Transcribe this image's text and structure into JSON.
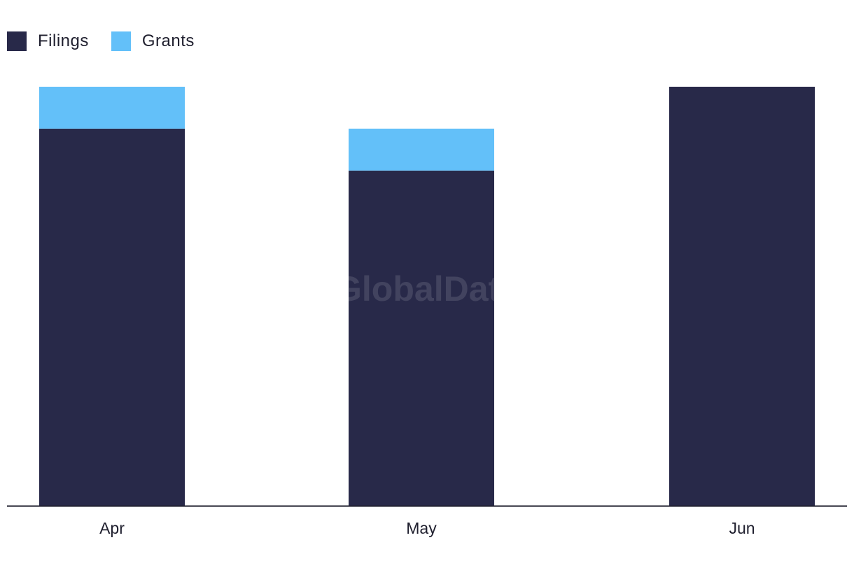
{
  "watermark": "GlobalData",
  "colors": {
    "filings": "#282949",
    "grants": "#63c0f9",
    "axis": "#1f1f2e"
  },
  "legend": [
    {
      "label": "Filings",
      "color": "#282949"
    },
    {
      "label": "Grants",
      "color": "#63c0f9"
    }
  ],
  "chart_data": {
    "type": "bar",
    "stacked": true,
    "categories": [
      "Apr",
      "May",
      "Jun"
    ],
    "series": [
      {
        "name": "Filings",
        "values": [
          9,
          8,
          10
        ]
      },
      {
        "name": "Grants",
        "values": [
          1,
          1,
          0
        ]
      }
    ],
    "title": "",
    "xlabel": "",
    "ylabel": "",
    "ylim": [
      0,
      10
    ],
    "grid": false,
    "legend_position": "top-left"
  }
}
